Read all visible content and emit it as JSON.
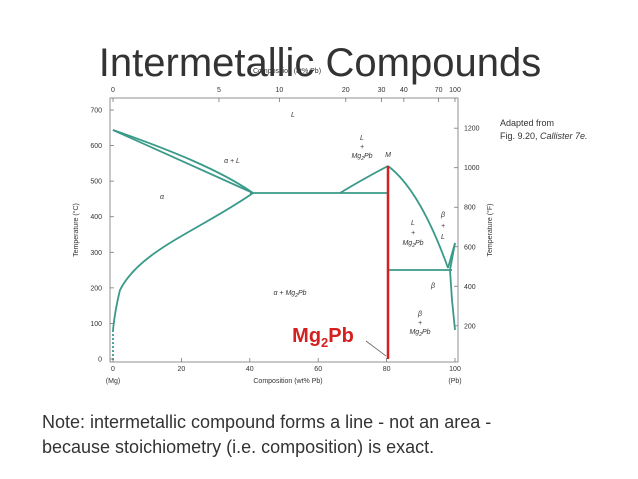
{
  "title": "Intermetallic Compounds",
  "top_axis": {
    "label": "Composition (at% Pb)",
    "ticks": [
      0,
      5,
      10,
      20,
      30,
      40,
      70,
      100
    ]
  },
  "bottom_axis": {
    "label": "Composition (wt% Pb)",
    "ticks": [
      0,
      20,
      40,
      60,
      80,
      100
    ],
    "left_end": "(Mg)",
    "right_end": "(Pb)"
  },
  "left_axis": {
    "label": "Temperature (°C)",
    "ticks": [
      0,
      100,
      200,
      300,
      400,
      500,
      600,
      700
    ]
  },
  "right_axis": {
    "label": "Temperature (°F)",
    "ticks": [
      200,
      400,
      600,
      800,
      1000,
      1200
    ]
  },
  "regions": [
    {
      "lines": [
        [
          "L"
        ]
      ]
    },
    {
      "lines": [
        [
          "α + L"
        ]
      ]
    },
    {
      "lines": [
        [
          "α"
        ]
      ]
    },
    {
      "lines": [
        [
          "L"
        ],
        [
          "+"
        ],
        [
          "Mg",
          "2",
          "Pb"
        ]
      ]
    },
    {
      "lines": [
        [
          "M"
        ]
      ]
    },
    {
      "lines": [
        [
          "L"
        ],
        [
          "+"
        ],
        [
          "Mg",
          "2",
          "Pb"
        ]
      ]
    },
    {
      "lines": [
        [
          "β"
        ],
        [
          "+"
        ],
        [
          "L"
        ]
      ]
    },
    {
      "lines": [
        [
          "β"
        ]
      ]
    },
    {
      "lines": [
        [
          "α + Mg",
          "2",
          "Pb"
        ]
      ]
    },
    {
      "lines": [
        [
          "β"
        ],
        [
          "+"
        ],
        [
          "Mg",
          "2",
          "Pb"
        ]
      ]
    }
  ],
  "compound_label": [
    "Mg",
    "2",
    "Pb"
  ],
  "credit": [
    "Adapted from",
    [
      "Fig. 9.20, ",
      "Callister 7e."
    ]
  ],
  "note": [
    "Note: intermetallic compound forms a line - not an area -",
    "because stoichiometry (i.e. composition) is exact."
  ]
}
